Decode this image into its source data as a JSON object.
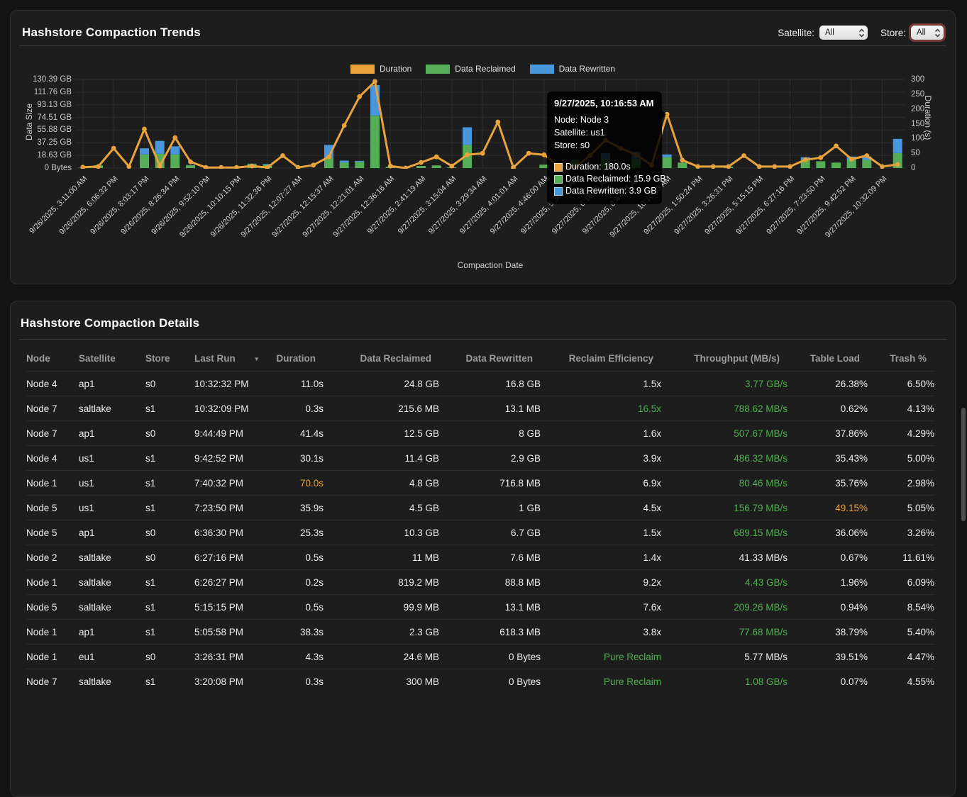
{
  "trends_panel": {
    "title": "Hashstore Compaction Trends",
    "filters": {
      "satellite_label": "Satellite:",
      "satellite_value": "All",
      "store_label": "Store:",
      "store_value": "All"
    },
    "legend": [
      {
        "label": "Duration",
        "color": "#e8a33d"
      },
      {
        "label": "Data Reclaimed",
        "color": "#55ad55"
      },
      {
        "label": "Data Rewritten",
        "color": "#4996dc"
      }
    ],
    "tooltip": {
      "title": "9/27/2025, 10:16:53 AM",
      "node": "Node: Node 3",
      "satellite": "Satellite: us1",
      "store": "Store: s0",
      "metrics": [
        {
          "label": "Duration: 180.0s",
          "color": "#e8a33d"
        },
        {
          "label": "Data Reclaimed: 15.9 GB",
          "color": "#55ad55"
        },
        {
          "label": "Data Rewritten: 3.9 GB",
          "color": "#4996dc"
        }
      ]
    }
  },
  "chart_data": {
    "type": "bar+line",
    "xlabel": "Compaction Date",
    "ylabel_left": "Data Size",
    "ylabel_right": "Duration (s)",
    "y_left_ticks": [
      "130.39 GB",
      "111.76 GB",
      "93.13 GB",
      "74.51 GB",
      "55.88 GB",
      "37.25 GB",
      "18.63 GB",
      "0 Bytes"
    ],
    "y_left_max_gb": 130.39,
    "y_right_ticks": [
      "300",
      "250",
      "200",
      "150",
      "100",
      "50",
      "0"
    ],
    "y_right_max": 300,
    "grid": true,
    "legend_position": "top",
    "label_every": 2,
    "x_tick_labels": [
      "9/26/2025, 3:11:00 AM",
      "9/26/2025, 6:06:32 PM",
      "9/26/2025, 8:03:17 PM",
      "9/26/2025, 8:26:34 PM",
      "9/26/2025, 9:52:10 PM",
      "9/26/2025, 10:10:15 PM",
      "9/26/2025, 11:32:36 PM",
      "9/27/2025, 12:07:27 AM",
      "9/27/2025, 12:15:37 AM",
      "9/27/2025, 12:21:01 AM",
      "9/27/2025, 12:36:16 AM",
      "9/27/2025, 2:41:19 AM",
      "9/27/2025, 3:15:04 AM",
      "9/27/2025, 3:29:34 AM",
      "9/27/2025, 4:01:01 AM",
      "9/27/2025, 4:46:00 AM",
      "9/27/2025, 5:30:47 AM",
      "9/27/2025, 6:18:36 AM",
      "9/27/2025, 8:47:15 AM",
      "9/27/2025, 10:16:53 AM",
      "9/27/2025, 1:50:24 PM",
      "9/27/2025, 3:26:31 PM",
      "9/27/2025, 5:15:15 PM",
      "9/27/2025, 6:27:16 PM",
      "9/27/2025, 7:23:50 PM",
      "9/27/2025, 9:42:52 PM",
      "9/27/2025, 10:32:09 PM"
    ],
    "series": [
      {
        "name": "Duration",
        "type": "line",
        "axis": "right",
        "unit": "s",
        "color": "#e8a33d",
        "values": [
          3,
          5,
          67,
          5,
          132,
          7,
          103,
          21,
          2,
          2,
          2,
          7,
          2,
          42,
          2,
          10,
          38,
          144,
          242,
          293,
          7,
          0,
          19,
          38,
          7,
          45,
          50,
          156,
          2,
          50,
          45,
          7,
          2,
          43,
          94,
          67,
          45,
          10,
          182,
          27,
          5,
          5,
          5,
          42,
          5,
          5,
          5,
          28,
          35,
          75,
          30,
          42,
          5,
          12
        ]
      },
      {
        "name": "Data Reclaimed",
        "type": "bar-stacked",
        "axis": "left",
        "unit": "GB",
        "color": "#55ad55",
        "values": [
          0.5,
          4,
          0,
          0,
          20,
          21,
          20,
          4,
          0,
          0,
          2,
          6,
          5,
          0,
          0,
          0,
          15,
          8,
          9,
          77,
          2,
          2,
          3,
          4,
          1,
          34,
          0,
          0,
          0,
          0,
          5,
          0,
          12,
          0,
          13,
          0,
          14,
          0,
          16,
          8,
          0,
          0,
          2,
          0,
          0,
          0,
          0,
          12,
          10,
          8,
          12,
          12,
          0,
          22
        ]
      },
      {
        "name": "Data Rewritten",
        "type": "bar-stacked",
        "axis": "left",
        "unit": "GB",
        "color": "#4996dc",
        "values": [
          0,
          0,
          0,
          0,
          9,
          19,
          12,
          0.5,
          0,
          0,
          0,
          0.5,
          1,
          0,
          0,
          0,
          19,
          3,
          1.5,
          45,
          0,
          0,
          0,
          0,
          0,
          26,
          0,
          0,
          0,
          0,
          0,
          0,
          0,
          0,
          9,
          0,
          10,
          0,
          4,
          0,
          0,
          0,
          0,
          0,
          0,
          0,
          0,
          4,
          0,
          0,
          5,
          5,
          0,
          21
        ]
      }
    ]
  },
  "details_panel": {
    "title": "Hashstore Compaction Details",
    "columns": [
      {
        "label": "Node",
        "align": "left"
      },
      {
        "label": "Satellite",
        "align": "left"
      },
      {
        "label": "Store",
        "align": "left"
      },
      {
        "label": "Last Run",
        "align": "left",
        "sort": "desc"
      },
      {
        "label": "Duration",
        "align": "right"
      },
      {
        "label": "Data Reclaimed",
        "align": "right"
      },
      {
        "label": "Data Rewritten",
        "align": "right"
      },
      {
        "label": "Reclaim Efficiency",
        "align": "right"
      },
      {
        "label": "Throughput (MB/s)",
        "align": "right"
      },
      {
        "label": "Table Load",
        "align": "right"
      },
      {
        "label": "Trash %",
        "align": "right"
      }
    ],
    "rows": [
      [
        "Node 4",
        "ap1",
        "s0",
        "10:32:32 PM",
        "11.0s",
        "24.8 GB",
        "16.8 GB",
        "1.5x",
        {
          "t": "3.77 GB/s",
          "c": "green"
        },
        "26.38%",
        "6.50%"
      ],
      [
        "Node 7",
        "saltlake",
        "s1",
        "10:32:09 PM",
        "0.3s",
        "215.6 MB",
        "13.1 MB",
        {
          "t": "16.5x",
          "c": "green"
        },
        {
          "t": "788.62 MB/s",
          "c": "green"
        },
        "0.62%",
        "4.13%"
      ],
      [
        "Node 7",
        "ap1",
        "s0",
        "9:44:49 PM",
        "41.4s",
        "12.5 GB",
        "8 GB",
        "1.6x",
        {
          "t": "507.67 MB/s",
          "c": "green"
        },
        "37.86%",
        "4.29%"
      ],
      [
        "Node 4",
        "us1",
        "s1",
        "9:42:52 PM",
        "30.1s",
        "11.4 GB",
        "2.9 GB",
        "3.9x",
        {
          "t": "486.32 MB/s",
          "c": "green"
        },
        "35.43%",
        "5.00%"
      ],
      [
        "Node 1",
        "us1",
        "s1",
        "7:40:32 PM",
        {
          "t": "70.0s",
          "c": "orange"
        },
        "4.8 GB",
        "716.8 MB",
        "6.9x",
        {
          "t": "80.46 MB/s",
          "c": "green"
        },
        "35.76%",
        "2.98%"
      ],
      [
        "Node 5",
        "us1",
        "s1",
        "7:23:50 PM",
        "35.9s",
        "4.5 GB",
        "1 GB",
        "4.5x",
        {
          "t": "156.79 MB/s",
          "c": "green"
        },
        {
          "t": "49.15%",
          "c": "orange"
        },
        "5.05%"
      ],
      [
        "Node 5",
        "ap1",
        "s0",
        "6:36:30 PM",
        "25.3s",
        "10.3 GB",
        "6.7 GB",
        "1.5x",
        {
          "t": "689.15 MB/s",
          "c": "green"
        },
        "36.06%",
        "3.26%"
      ],
      [
        "Node 2",
        "saltlake",
        "s0",
        "6:27:16 PM",
        "0.5s",
        "11 MB",
        "7.6 MB",
        "1.4x",
        "41.33 MB/s",
        "0.67%",
        "11.61%"
      ],
      [
        "Node 1",
        "saltlake",
        "s1",
        "6:26:27 PM",
        "0.2s",
        "819.2 MB",
        "88.8 MB",
        "9.2x",
        {
          "t": "4.43 GB/s",
          "c": "green"
        },
        "1.96%",
        "6.09%"
      ],
      [
        "Node 5",
        "saltlake",
        "s1",
        "5:15:15 PM",
        "0.5s",
        "99.9 MB",
        "13.1 MB",
        "7.6x",
        {
          "t": "209.26 MB/s",
          "c": "green"
        },
        "0.94%",
        "8.54%"
      ],
      [
        "Node 1",
        "ap1",
        "s1",
        "5:05:58 PM",
        "38.3s",
        "2.3 GB",
        "618.3 MB",
        "3.8x",
        {
          "t": "77.68 MB/s",
          "c": "green"
        },
        "38.79%",
        "5.40%"
      ],
      [
        "Node 1",
        "eu1",
        "s0",
        "3:26:31 PM",
        "4.3s",
        "24.6 MB",
        "0 Bytes",
        {
          "t": "Pure Reclaim",
          "c": "green"
        },
        "5.77 MB/s",
        "39.51%",
        "4.47%"
      ],
      [
        "Node 7",
        "saltlake",
        "s1",
        "3:20:08 PM",
        "0.3s",
        "300 MB",
        "0 Bytes",
        {
          "t": "Pure Reclaim",
          "c": "green"
        },
        {
          "t": "1.08 GB/s",
          "c": "green"
        },
        "0.07%",
        "4.55%"
      ]
    ]
  }
}
